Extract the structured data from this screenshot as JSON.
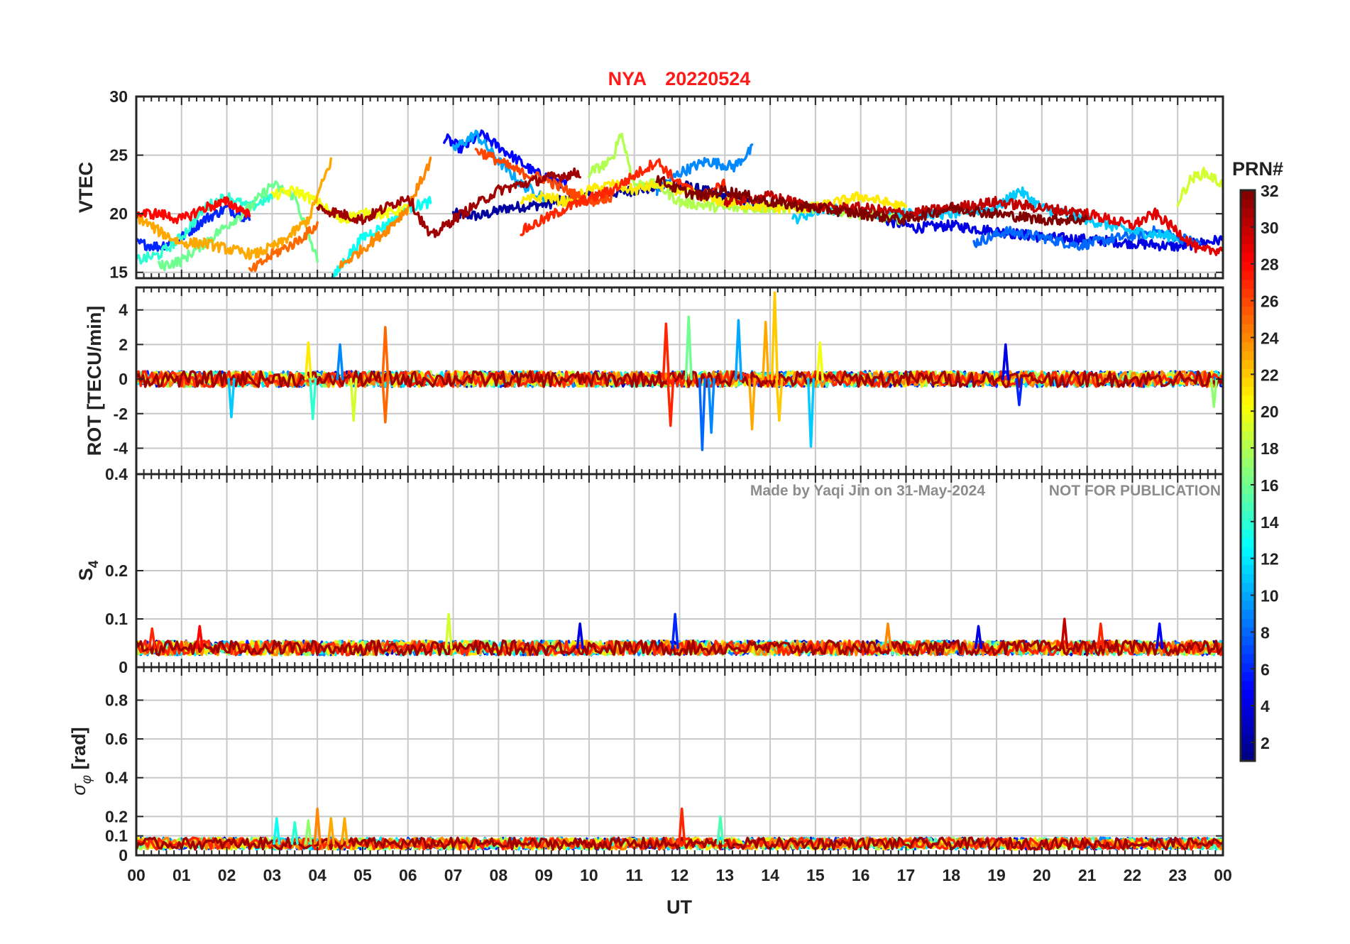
{
  "title": {
    "station": "NYA",
    "date": "20220524",
    "color": "#ff1a1a"
  },
  "watermark": {
    "author": "Made by Yaqi Jin on 31-May-2024",
    "notice": "NOT FOR PUBLICATION",
    "color": "#8c8c8c"
  },
  "xaxis": {
    "label": "UT",
    "range": [
      0,
      24
    ],
    "ticks": [
      "00",
      "01",
      "02",
      "03",
      "04",
      "05",
      "06",
      "07",
      "08",
      "09",
      "10",
      "11",
      "12",
      "13",
      "14",
      "15",
      "16",
      "17",
      "18",
      "19",
      "20",
      "21",
      "22",
      "23",
      "00"
    ]
  },
  "colorbar": {
    "label": "PRN#",
    "colormap": "jet",
    "range": [
      1,
      32
    ],
    "ticks": [
      "32",
      "30",
      "28",
      "26",
      "24",
      "22",
      "20",
      "18",
      "16",
      "14",
      "12",
      "10",
      "8",
      "6",
      "4",
      "2"
    ]
  },
  "chart_data": [
    {
      "type": "line",
      "ylabel": "VTEC",
      "ylim": [
        14.5,
        30
      ],
      "yticks": [
        "30",
        "25",
        "20",
        "15"
      ],
      "grid": true,
      "series": [
        {
          "prn": 2,
          "x": [
            7.0,
            7.6,
            8.2,
            9.0,
            10.0,
            11.0,
            12.0,
            13.0,
            14.0
          ],
          "y": [
            20.0,
            19.8,
            20.5,
            20.8,
            21.5,
            22.0,
            22.5,
            21.5,
            20.5
          ]
        },
        {
          "prn": 4,
          "x": [
            16.5,
            17.2,
            18.0,
            19.0,
            20.0,
            21.0,
            22.0,
            23.0,
            24.0
          ],
          "y": [
            19.5,
            18.8,
            19.0,
            18.5,
            18.0,
            17.8,
            17.5,
            17.2,
            17.8
          ]
        },
        {
          "prn": 5,
          "x": [
            6.8,
            7.2,
            7.6,
            8.2,
            8.8,
            9.5
          ],
          "y": [
            26.5,
            25.5,
            26.8,
            25.2,
            23.5,
            22.5
          ]
        },
        {
          "prn": 6,
          "x": [
            0.0,
            0.5,
            1.0,
            1.5,
            2.0,
            2.5
          ],
          "y": [
            17.5,
            17.2,
            18.0,
            19.5,
            20.5,
            19.5
          ]
        },
        {
          "prn": 8,
          "x": [
            18.5,
            19.2,
            20.0,
            20.8,
            21.5,
            22.5,
            23.5
          ],
          "y": [
            17.5,
            18.5,
            18.0,
            17.3,
            17.8,
            18.5,
            17.5
          ]
        },
        {
          "prn": 9,
          "x": [
            11.5,
            12.0,
            12.6,
            13.2,
            13.6
          ],
          "y": [
            22.0,
            23.5,
            24.5,
            24.0,
            25.5
          ]
        },
        {
          "prn": 10,
          "x": [
            7.0,
            7.5,
            8.0,
            8.5,
            9.0
          ],
          "y": [
            25.5,
            26.8,
            24.5,
            22.5,
            21.5
          ]
        },
        {
          "prn": 11,
          "x": [
            14.5,
            15.2,
            16.0,
            17.0,
            18.0,
            19.0,
            19.5,
            20.0,
            21.0,
            22.0,
            23.0
          ],
          "y": [
            19.5,
            20.5,
            20.0,
            20.0,
            20.0,
            20.5,
            22.0,
            20.5,
            19.5,
            18.5,
            18.0
          ]
        },
        {
          "prn": 13,
          "x": [
            4.3,
            4.6,
            5.0,
            5.5,
            6.0,
            6.5
          ],
          "y": [
            14.2,
            16.0,
            18.0,
            19.0,
            20.5,
            21.0
          ]
        },
        {
          "prn": 14,
          "x": [
            0.0,
            0.5,
            1.0,
            1.5,
            2.0,
            2.5,
            3.0
          ],
          "y": [
            16.0,
            16.5,
            18.0,
            20.5,
            21.5,
            20.5,
            21.5
          ]
        },
        {
          "prn": 16,
          "x": [
            0.5,
            1.0,
            1.5,
            2.0,
            2.5,
            3.0,
            3.5,
            4.0
          ],
          "y": [
            15.5,
            16.0,
            17.5,
            19.0,
            20.5,
            22.5,
            21.5,
            16.0
          ]
        },
        {
          "prn": 18,
          "x": [
            10.0,
            10.5,
            10.7,
            11.0,
            11.5,
            12.0,
            13.0,
            14.0,
            15.0,
            16.0,
            17.0
          ],
          "y": [
            23.5,
            24.5,
            27.0,
            22.5,
            22.5,
            21.0,
            20.5,
            20.5,
            20.5,
            20.0,
            19.5
          ]
        },
        {
          "prn": 19,
          "x": [
            23.0,
            23.3,
            23.6,
            24.0
          ],
          "y": [
            21.0,
            23.0,
            23.5,
            22.5
          ]
        },
        {
          "prn": 20,
          "x": [
            3.0,
            3.5,
            4.0,
            4.5,
            5.0,
            5.5,
            6.0
          ],
          "y": [
            21.5,
            22.0,
            21.0,
            19.5,
            20.0,
            20.0,
            20.5
          ]
        },
        {
          "prn": 21,
          "x": [
            8.5,
            9.0,
            9.5,
            10.0,
            10.5,
            11.0,
            11.5,
            12.0,
            13.0,
            14.0,
            15.0,
            16.0,
            17.0
          ],
          "y": [
            21.0,
            21.5,
            21.0,
            22.0,
            22.5,
            22.0,
            22.5,
            22.0,
            21.0,
            20.5,
            20.5,
            21.5,
            20.5
          ]
        },
        {
          "prn": 23,
          "x": [
            0.0,
            0.5,
            1.0,
            1.5,
            2.0,
            2.6,
            3.2,
            3.8,
            4.3
          ],
          "y": [
            19.8,
            18.5,
            17.5,
            17.5,
            17.0,
            16.5,
            17.5,
            19.5,
            24.5
          ]
        },
        {
          "prn": 24,
          "x": [
            4.5,
            5.0,
            5.5,
            6.0,
            6.5
          ],
          "y": [
            15.5,
            17.0,
            18.5,
            20.5,
            24.5
          ]
        },
        {
          "prn": 25,
          "x": [
            2.5,
            3.0,
            3.5,
            4.0
          ],
          "y": [
            15.0,
            16.5,
            17.5,
            19.0
          ]
        },
        {
          "prn": 26,
          "x": [
            7.5,
            8.0,
            8.5,
            9.0,
            9.5,
            10.0,
            10.5
          ],
          "y": [
            25.5,
            24.5,
            23.5,
            23.0,
            22.0,
            21.0,
            21.5
          ]
        },
        {
          "prn": 27,
          "x": [
            8.5,
            9.5,
            10.5,
            11.5,
            12.0,
            12.5,
            13.0
          ],
          "y": [
            18.5,
            20.5,
            22.0,
            24.5,
            22.5,
            21.5,
            22.5
          ]
        },
        {
          "prn": 28,
          "x": [
            0.0,
            0.5,
            1.0,
            1.5,
            2.0,
            2.5
          ],
          "y": [
            20.0,
            20.0,
            19.5,
            20.5,
            21.0,
            20.0
          ]
        },
        {
          "prn": 29,
          "x": [
            21.0,
            21.5,
            22.0,
            22.5,
            23.0,
            23.5,
            24.0
          ],
          "y": [
            20.0,
            19.5,
            19.0,
            20.0,
            18.5,
            16.8,
            17.0
          ]
        },
        {
          "prn": 30,
          "x": [
            13.0,
            14.0,
            15.0,
            16.0,
            17.0,
            18.0,
            19.0,
            20.0,
            21.0
          ],
          "y": [
            21.0,
            21.5,
            20.5,
            20.5,
            20.0,
            20.5,
            21.0,
            20.5,
            20.0
          ]
        },
        {
          "prn": 31,
          "x": [
            4.0,
            5.0,
            6.0,
            6.5,
            7.0,
            8.0,
            9.0,
            9.8
          ],
          "y": [
            20.5,
            19.5,
            21.5,
            18.0,
            19.5,
            22.0,
            23.0,
            23.5
          ]
        },
        {
          "prn": 32,
          "x": [
            11.5,
            12.0,
            12.5,
            13.0,
            14.0,
            15.0,
            16.0,
            17.0,
            18.0,
            19.0,
            20.0,
            21.0
          ],
          "y": [
            23.0,
            22.0,
            21.5,
            22.0,
            21.0,
            20.5,
            20.0,
            19.5,
            20.5,
            20.0,
            19.5,
            19.5
          ]
        }
      ]
    },
    {
      "type": "line",
      "ylabel": "ROT [TECU/min]",
      "ylim": [
        -5.5,
        5.3
      ],
      "yticks": [
        "4",
        "2",
        "0",
        "-2",
        "-4"
      ],
      "grid": true,
      "baseline_noise_amplitude": 0.45,
      "spikes": [
        {
          "x": 2.1,
          "y": -2.2,
          "prn": 11
        },
        {
          "x": 3.8,
          "y": 2.1,
          "prn": 21
        },
        {
          "x": 3.9,
          "y": -2.3,
          "prn": 14
        },
        {
          "x": 4.8,
          "y": -2.4,
          "prn": 19
        },
        {
          "x": 4.5,
          "y": 2.0,
          "prn": 9
        },
        {
          "x": 5.5,
          "y": 3.0,
          "prn": 25
        },
        {
          "x": 5.5,
          "y": -2.5,
          "prn": 25
        },
        {
          "x": 11.7,
          "y": 3.2,
          "prn": 27
        },
        {
          "x": 11.8,
          "y": -2.7,
          "prn": 27
        },
        {
          "x": 12.2,
          "y": 3.6,
          "prn": 16
        },
        {
          "x": 12.5,
          "y": -4.1,
          "prn": 8
        },
        {
          "x": 12.7,
          "y": -3.1,
          "prn": 9
        },
        {
          "x": 13.3,
          "y": 3.4,
          "prn": 10
        },
        {
          "x": 13.6,
          "y": -2.9,
          "prn": 23
        },
        {
          "x": 13.9,
          "y": 3.3,
          "prn": 23
        },
        {
          "x": 14.1,
          "y": 5.0,
          "prn": 22
        },
        {
          "x": 14.2,
          "y": -2.4,
          "prn": 22
        },
        {
          "x": 14.9,
          "y": -3.9,
          "prn": 11
        },
        {
          "x": 15.1,
          "y": 2.1,
          "prn": 20
        },
        {
          "x": 19.2,
          "y": 2.0,
          "prn": 4
        },
        {
          "x": 19.5,
          "y": -1.5,
          "prn": 6
        },
        {
          "x": 23.8,
          "y": -1.6,
          "prn": 17
        }
      ]
    },
    {
      "type": "line",
      "ylabel": "S4",
      "ylim": [
        0,
        0.4
      ],
      "yticks": [
        "0.4",
        "0.2",
        "0.1",
        "0"
      ],
      "grid": true,
      "baseline": 0.04,
      "baseline_noise_amplitude": 0.015,
      "spikes": [
        {
          "x": 0.35,
          "y": 0.08,
          "prn": 27
        },
        {
          "x": 1.4,
          "y": 0.085,
          "prn": 28
        },
        {
          "x": 6.9,
          "y": 0.11,
          "prn": 19
        },
        {
          "x": 9.8,
          "y": 0.09,
          "prn": 4
        },
        {
          "x": 11.9,
          "y": 0.11,
          "prn": 6
        },
        {
          "x": 16.6,
          "y": 0.09,
          "prn": 24
        },
        {
          "x": 18.6,
          "y": 0.085,
          "prn": 4
        },
        {
          "x": 20.5,
          "y": 0.1,
          "prn": 30
        },
        {
          "x": 21.3,
          "y": 0.09,
          "prn": 27
        },
        {
          "x": 22.6,
          "y": 0.09,
          "prn": 5
        }
      ]
    },
    {
      "type": "line",
      "ylabel": "σφ [rad]",
      "ylim": [
        0,
        0.97
      ],
      "yticks": [
        "0.8",
        "0.6",
        "0.4",
        "0.2",
        "0.1",
        "0"
      ],
      "grid": true,
      "baseline": 0.06,
      "baseline_noise_amplitude": 0.03,
      "spikes": [
        {
          "x": 3.1,
          "y": 0.19,
          "prn": 13
        },
        {
          "x": 3.5,
          "y": 0.17,
          "prn": 14
        },
        {
          "x": 3.8,
          "y": 0.18,
          "prn": 17
        },
        {
          "x": 4.0,
          "y": 0.24,
          "prn": 24
        },
        {
          "x": 4.3,
          "y": 0.19,
          "prn": 23
        },
        {
          "x": 4.6,
          "y": 0.19,
          "prn": 23
        },
        {
          "x": 12.05,
          "y": 0.24,
          "prn": 27
        },
        {
          "x": 12.9,
          "y": 0.2,
          "prn": 15
        }
      ]
    }
  ]
}
